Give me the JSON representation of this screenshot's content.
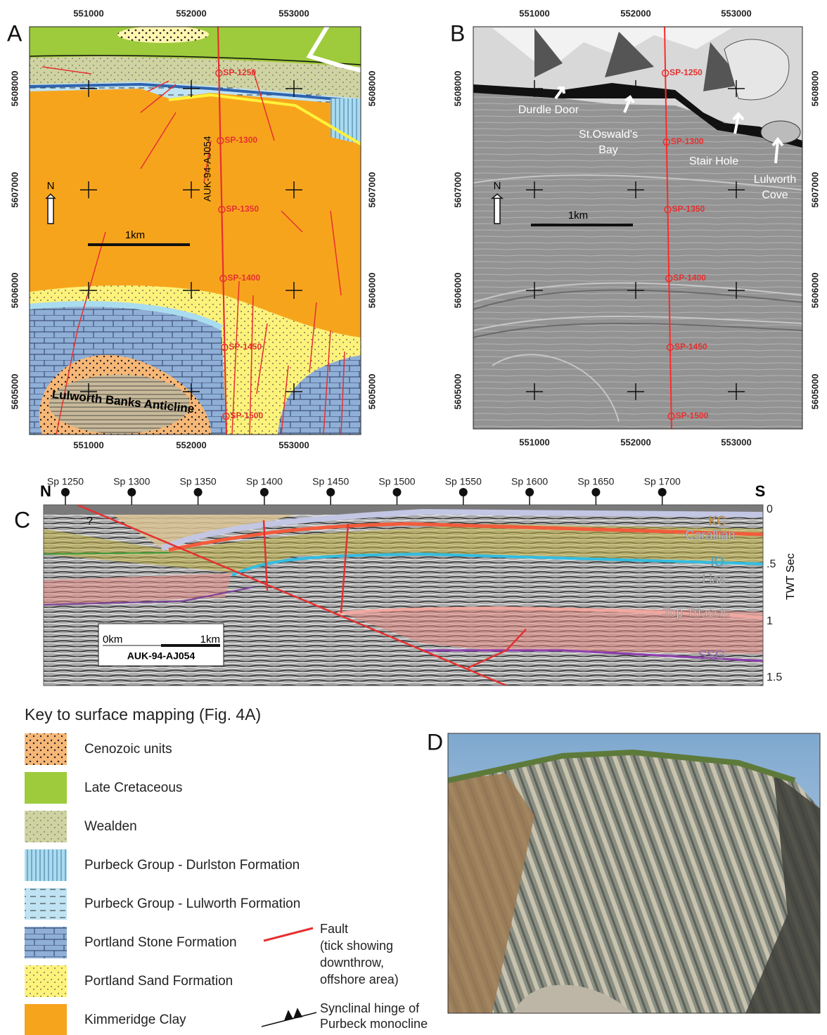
{
  "panels": {
    "A": {
      "label": "A",
      "eastings": [
        551000,
        552000,
        553000
      ],
      "northings": [
        5608000,
        5607000,
        5606000,
        5605000
      ],
      "shotpoints": [
        "SP-1250",
        "SP-1300",
        "SP-1350",
        "SP-1400",
        "SP-1450",
        "SP-1500"
      ],
      "line_name": "AUK-94-AJ054",
      "north": "N",
      "scale": "1km",
      "structure": "Lulworth Banks Anticline"
    },
    "B": {
      "label": "B",
      "eastings": [
        551000,
        552000,
        553000
      ],
      "northings": [
        5608000,
        5607000,
        5606000,
        5605000
      ],
      "shotpoints": [
        "SP-1250",
        "SP-1300",
        "SP-1350",
        "SP-1400",
        "SP-1450",
        "SP-1500"
      ],
      "north": "N",
      "scale": "1km",
      "places": [
        [
          "Durdle Door"
        ],
        [
          "St.Oswald's",
          "Bay"
        ],
        [
          "Stair Hole"
        ],
        [
          "Lulworth",
          "Cove"
        ]
      ]
    },
    "C": {
      "label": "C",
      "north": "N",
      "south": "S",
      "shotpoints": [
        "Sp 1250",
        "Sp 1300",
        "Sp 1350",
        "Sp 1400",
        "Sp 1450",
        "Sp 1500",
        "Sp 1550",
        "Sp 1600",
        "Sp 1650",
        "Sp 1700"
      ],
      "horizons": [
        "KC",
        "Corallian",
        "IO",
        "Lias",
        "Top Triassic",
        "SSG"
      ],
      "unknown": "?",
      "scale_start": "0km",
      "scale_end": "1km",
      "line_name": "AUK-94-AJ054",
      "twt_ticks": [
        "0",
        ".5",
        "1",
        "1.5"
      ],
      "axis_label": "TWT Sec"
    },
    "D": {
      "label": "D"
    }
  },
  "legend": {
    "title": "Key to surface mapping (Fig. 4A)",
    "units": [
      "Cenozoic units",
      "Late Cretaceous",
      "Wealden",
      "Purbeck Group - Durlston Formation",
      "Purbeck Group - Lulworth Formation",
      "Portland Stone Formation",
      "Portland Sand Formation",
      "Kimmeridge Clay"
    ],
    "fault": [
      "Fault",
      "(tick showing",
      "downthrow,",
      "offshore area)"
    ],
    "hinge": [
      "Synclinal hinge of",
      "Purbeck monocline"
    ]
  }
}
